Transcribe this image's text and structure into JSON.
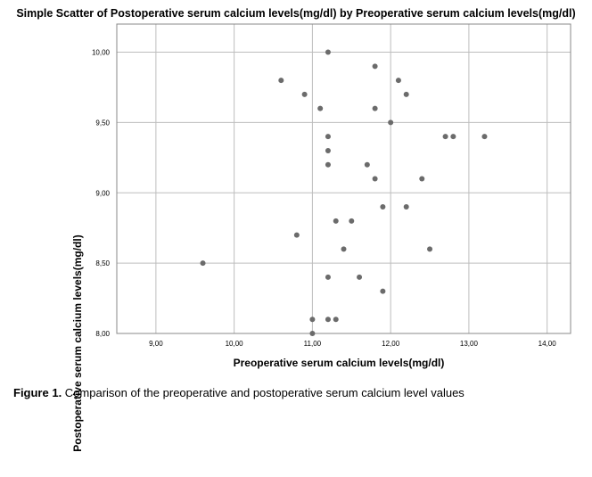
{
  "chart_data": {
    "type": "scatter",
    "title": "Simple Scatter of Postoperative serum calcium levels(mg/dl) by Preoperative serum calcium levels(mg/dl)",
    "xlabel": "Preoperative serum calcium levels(mg/dl)",
    "ylabel": "Postoperative serum calcium levels(mg/dl)",
    "xlim": [
      8.5,
      14.3
    ],
    "ylim": [
      8.0,
      10.2
    ],
    "x_ticks": [
      9,
      10,
      11,
      12,
      13,
      14
    ],
    "x_tick_labels": [
      "9,00",
      "10,00",
      "11,00",
      "12,00",
      "13,00",
      "14,00"
    ],
    "y_ticks": [
      8.0,
      8.5,
      9.0,
      9.5,
      10.0
    ],
    "y_tick_labels": [
      "8,00",
      "8,50",
      "9,00",
      "9,50",
      "10,00"
    ],
    "grid": true,
    "points": [
      {
        "x": 11.2,
        "y": 10.0
      },
      {
        "x": 11.8,
        "y": 9.9
      },
      {
        "x": 10.6,
        "y": 9.8
      },
      {
        "x": 12.1,
        "y": 9.8
      },
      {
        "x": 10.9,
        "y": 9.7
      },
      {
        "x": 12.2,
        "y": 9.7
      },
      {
        "x": 11.1,
        "y": 9.6
      },
      {
        "x": 11.8,
        "y": 9.6
      },
      {
        "x": 12.0,
        "y": 9.5
      },
      {
        "x": 11.2,
        "y": 9.4
      },
      {
        "x": 12.7,
        "y": 9.4
      },
      {
        "x": 12.8,
        "y": 9.4
      },
      {
        "x": 13.2,
        "y": 9.4
      },
      {
        "x": 11.2,
        "y": 9.3
      },
      {
        "x": 11.2,
        "y": 9.2
      },
      {
        "x": 11.7,
        "y": 9.2
      },
      {
        "x": 11.8,
        "y": 9.1
      },
      {
        "x": 12.4,
        "y": 9.1
      },
      {
        "x": 11.9,
        "y": 8.9
      },
      {
        "x": 12.2,
        "y": 8.9
      },
      {
        "x": 11.3,
        "y": 8.8
      },
      {
        "x": 11.5,
        "y": 8.8
      },
      {
        "x": 10.8,
        "y": 8.7
      },
      {
        "x": 11.4,
        "y": 8.6
      },
      {
        "x": 12.5,
        "y": 8.6
      },
      {
        "x": 9.6,
        "y": 8.5
      },
      {
        "x": 11.2,
        "y": 8.4
      },
      {
        "x": 11.6,
        "y": 8.4
      },
      {
        "x": 11.9,
        "y": 8.3
      },
      {
        "x": 11.0,
        "y": 8.1
      },
      {
        "x": 11.2,
        "y": 8.1
      },
      {
        "x": 11.3,
        "y": 8.1
      },
      {
        "x": 11.0,
        "y": 8.0
      }
    ],
    "colors": {
      "point": "#6b6b6b",
      "grid": "#bdbdbd",
      "frame": "#888888"
    }
  },
  "caption": {
    "label": "Figure 1.",
    "text": " Comparison of the preoperative and postoperative serum calcium level values"
  }
}
